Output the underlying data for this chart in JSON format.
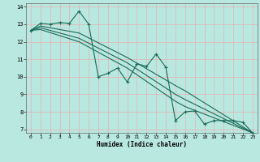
{
  "xlabel": "Humidex (Indice chaleur)",
  "bg_color": "#b8e8e0",
  "grid_color": "#e8b0b0",
  "line_color": "#1a6b5a",
  "xlim": [
    -0.5,
    23.5
  ],
  "ylim": [
    6.8,
    14.2
  ],
  "yticks": [
    7,
    8,
    9,
    10,
    11,
    12,
    13,
    14
  ],
  "xticks": [
    0,
    1,
    2,
    3,
    4,
    5,
    6,
    7,
    8,
    9,
    10,
    11,
    12,
    13,
    14,
    15,
    16,
    17,
    18,
    19,
    20,
    21,
    22,
    23
  ],
  "line1_x": [
    0,
    1,
    2,
    3,
    4,
    5,
    6,
    7,
    8,
    9,
    10,
    11,
    12,
    13,
    14,
    15,
    16,
    17,
    18,
    19,
    20,
    21,
    22,
    23
  ],
  "line1_y": [
    12.65,
    13.05,
    13.0,
    13.1,
    13.05,
    13.75,
    13.0,
    10.0,
    10.2,
    10.5,
    9.7,
    10.75,
    10.6,
    11.3,
    10.55,
    7.5,
    8.0,
    8.05,
    7.3,
    7.5,
    7.5,
    7.5,
    7.4,
    6.8
  ],
  "line2_x": [
    0,
    1,
    5,
    10,
    15,
    16,
    23
  ],
  "line2_y": [
    12.65,
    12.9,
    12.5,
    11.1,
    9.5,
    9.2,
    6.8
  ],
  "line3_x": [
    0,
    1,
    5,
    10,
    15,
    16,
    23
  ],
  "line3_y": [
    12.65,
    12.8,
    12.2,
    10.8,
    9.0,
    8.7,
    6.8
  ],
  "line4_x": [
    0,
    1,
    5,
    10,
    15,
    16,
    23
  ],
  "line4_y": [
    12.65,
    12.7,
    12.0,
    10.5,
    8.6,
    8.3,
    6.8
  ]
}
